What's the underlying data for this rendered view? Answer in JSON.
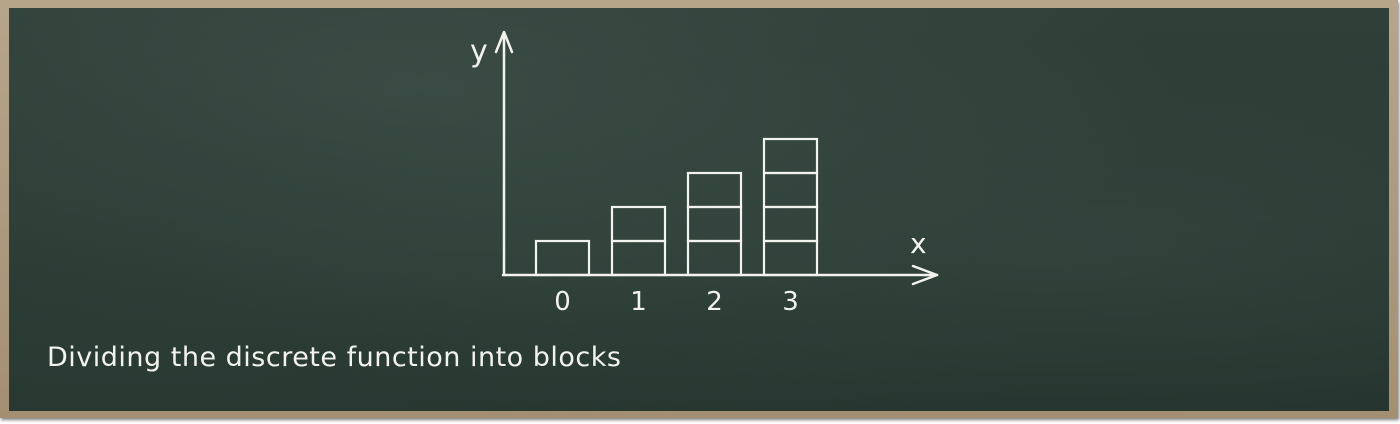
{
  "diagram": {
    "axis_x_label": "x",
    "axis_y_label": "y",
    "tick_labels": [
      "0",
      "1",
      "2",
      "3"
    ],
    "block_counts": [
      1,
      2,
      3,
      4
    ],
    "caption": "Dividing the discrete function into blocks"
  },
  "colors": {
    "chalk": "#f2f2ee",
    "board": "#2a3b34",
    "frame": "#ad9a7e"
  }
}
